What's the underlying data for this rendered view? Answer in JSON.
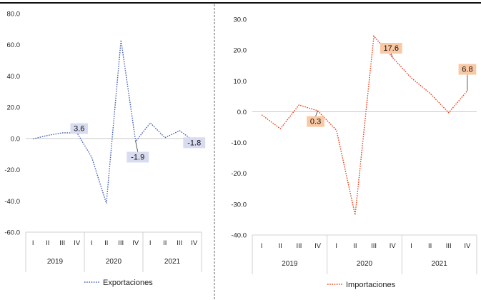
{
  "chart_data": [
    {
      "type": "line",
      "title": "",
      "xlabel": "",
      "ylabel": "",
      "ylim": [
        -60,
        80
      ],
      "yticks": [
        "80.0",
        "60.0",
        "40.0",
        "20.0",
        "0.0",
        "-20.0",
        "-40.0",
        "-60.0"
      ],
      "yticks_values": [
        80,
        60,
        40,
        20,
        0,
        -20,
        -40,
        -60
      ],
      "quarters": [
        "I",
        "II",
        "III",
        "IV",
        "I",
        "II",
        "III",
        "IV",
        "I",
        "II",
        "III",
        "IV"
      ],
      "years": [
        "2019",
        "2020",
        "2021"
      ],
      "grid": false,
      "legend": "bottom",
      "series": [
        {
          "name": "Exportaciones",
          "color": "#4B63B8",
          "values": [
            -0.3,
            2.0,
            3.6,
            3.6,
            -12.0,
            -41.5,
            63.0,
            -1.9,
            10.0,
            0.5,
            5.0,
            -1.8
          ]
        }
      ],
      "data_labels": [
        {
          "index": 3,
          "text": "3.6",
          "color": "#D9DCF0"
        },
        {
          "index": 7,
          "text": "-1.9",
          "color": "#D9DCF0"
        },
        {
          "index": 11,
          "text": "-1.8",
          "color": "#D9DCF0"
        }
      ]
    },
    {
      "type": "line",
      "title": "",
      "xlabel": "",
      "ylabel": "",
      "ylim": [
        -40,
        30
      ],
      "yticks": [
        "30.0",
        "20.0",
        "10.0",
        "0.0",
        "-10.0",
        "-20.0",
        "-30.0",
        "-40.0"
      ],
      "yticks_values": [
        30,
        20,
        10,
        0,
        -10,
        -20,
        -30,
        -40
      ],
      "quarters": [
        "I",
        "II",
        "III",
        "IV",
        "I",
        "II",
        "III",
        "IV",
        "I",
        "II",
        "III",
        "IV"
      ],
      "years": [
        "2019",
        "2020",
        "2021"
      ],
      "grid": false,
      "legend": "bottom",
      "series": [
        {
          "name": "Importaciones",
          "color": "#E8431C",
          "values": [
            -1.0,
            -5.5,
            2.2,
            0.3,
            -6.0,
            -33.5,
            24.5,
            17.6,
            11.0,
            6.0,
            -0.3,
            6.8
          ]
        }
      ],
      "data_labels": [
        {
          "index": 3,
          "text": "0.3",
          "color": "#F9C8A4"
        },
        {
          "index": 7,
          "text": "17.6",
          "color": "#F9C8A4"
        },
        {
          "index": 11,
          "text": "6.8",
          "color": "#F9C8A4"
        }
      ]
    }
  ]
}
